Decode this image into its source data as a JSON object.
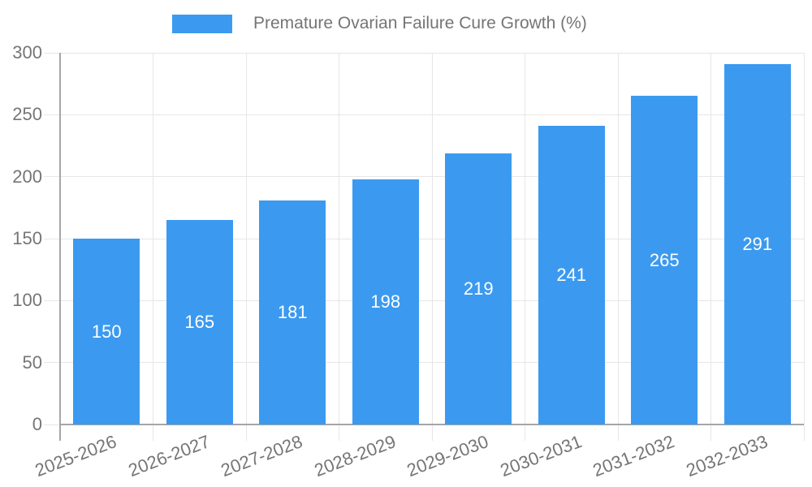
{
  "legend": {
    "label": "Premature Ovarian Failure Cure Growth (%)"
  },
  "chart_data": {
    "type": "bar",
    "title": "Premature Ovarian Failure Cure Growth (%)",
    "categories": [
      "2025-2026",
      "2026-2027",
      "2027-2028",
      "2028-2029",
      "2029-2030",
      "2030-2031",
      "2031-2032",
      "2032-2033"
    ],
    "values": [
      150,
      165,
      181,
      198,
      219,
      241,
      265,
      291
    ],
    "series": [
      {
        "name": "Premature Ovarian Failure Cure Growth (%)",
        "values": [
          150,
          165,
          181,
          198,
          219,
          241,
          265,
          291
        ]
      }
    ],
    "xlabel": "",
    "ylabel": "",
    "ylim": [
      0,
      300
    ],
    "yticks": [
      0,
      50,
      100,
      150,
      200,
      250,
      300
    ],
    "grid": true,
    "legend_position": "top-center",
    "value_label_position": "inside-center",
    "colors": {
      "bar": "#3B9AF0",
      "value_label": "#FFFFFF",
      "axis_line": "#A6A6A6",
      "grid_line": "#E6E6E6",
      "tick_label": "#757575",
      "legend_text": "#757575",
      "background": "#FFFFFF"
    }
  }
}
